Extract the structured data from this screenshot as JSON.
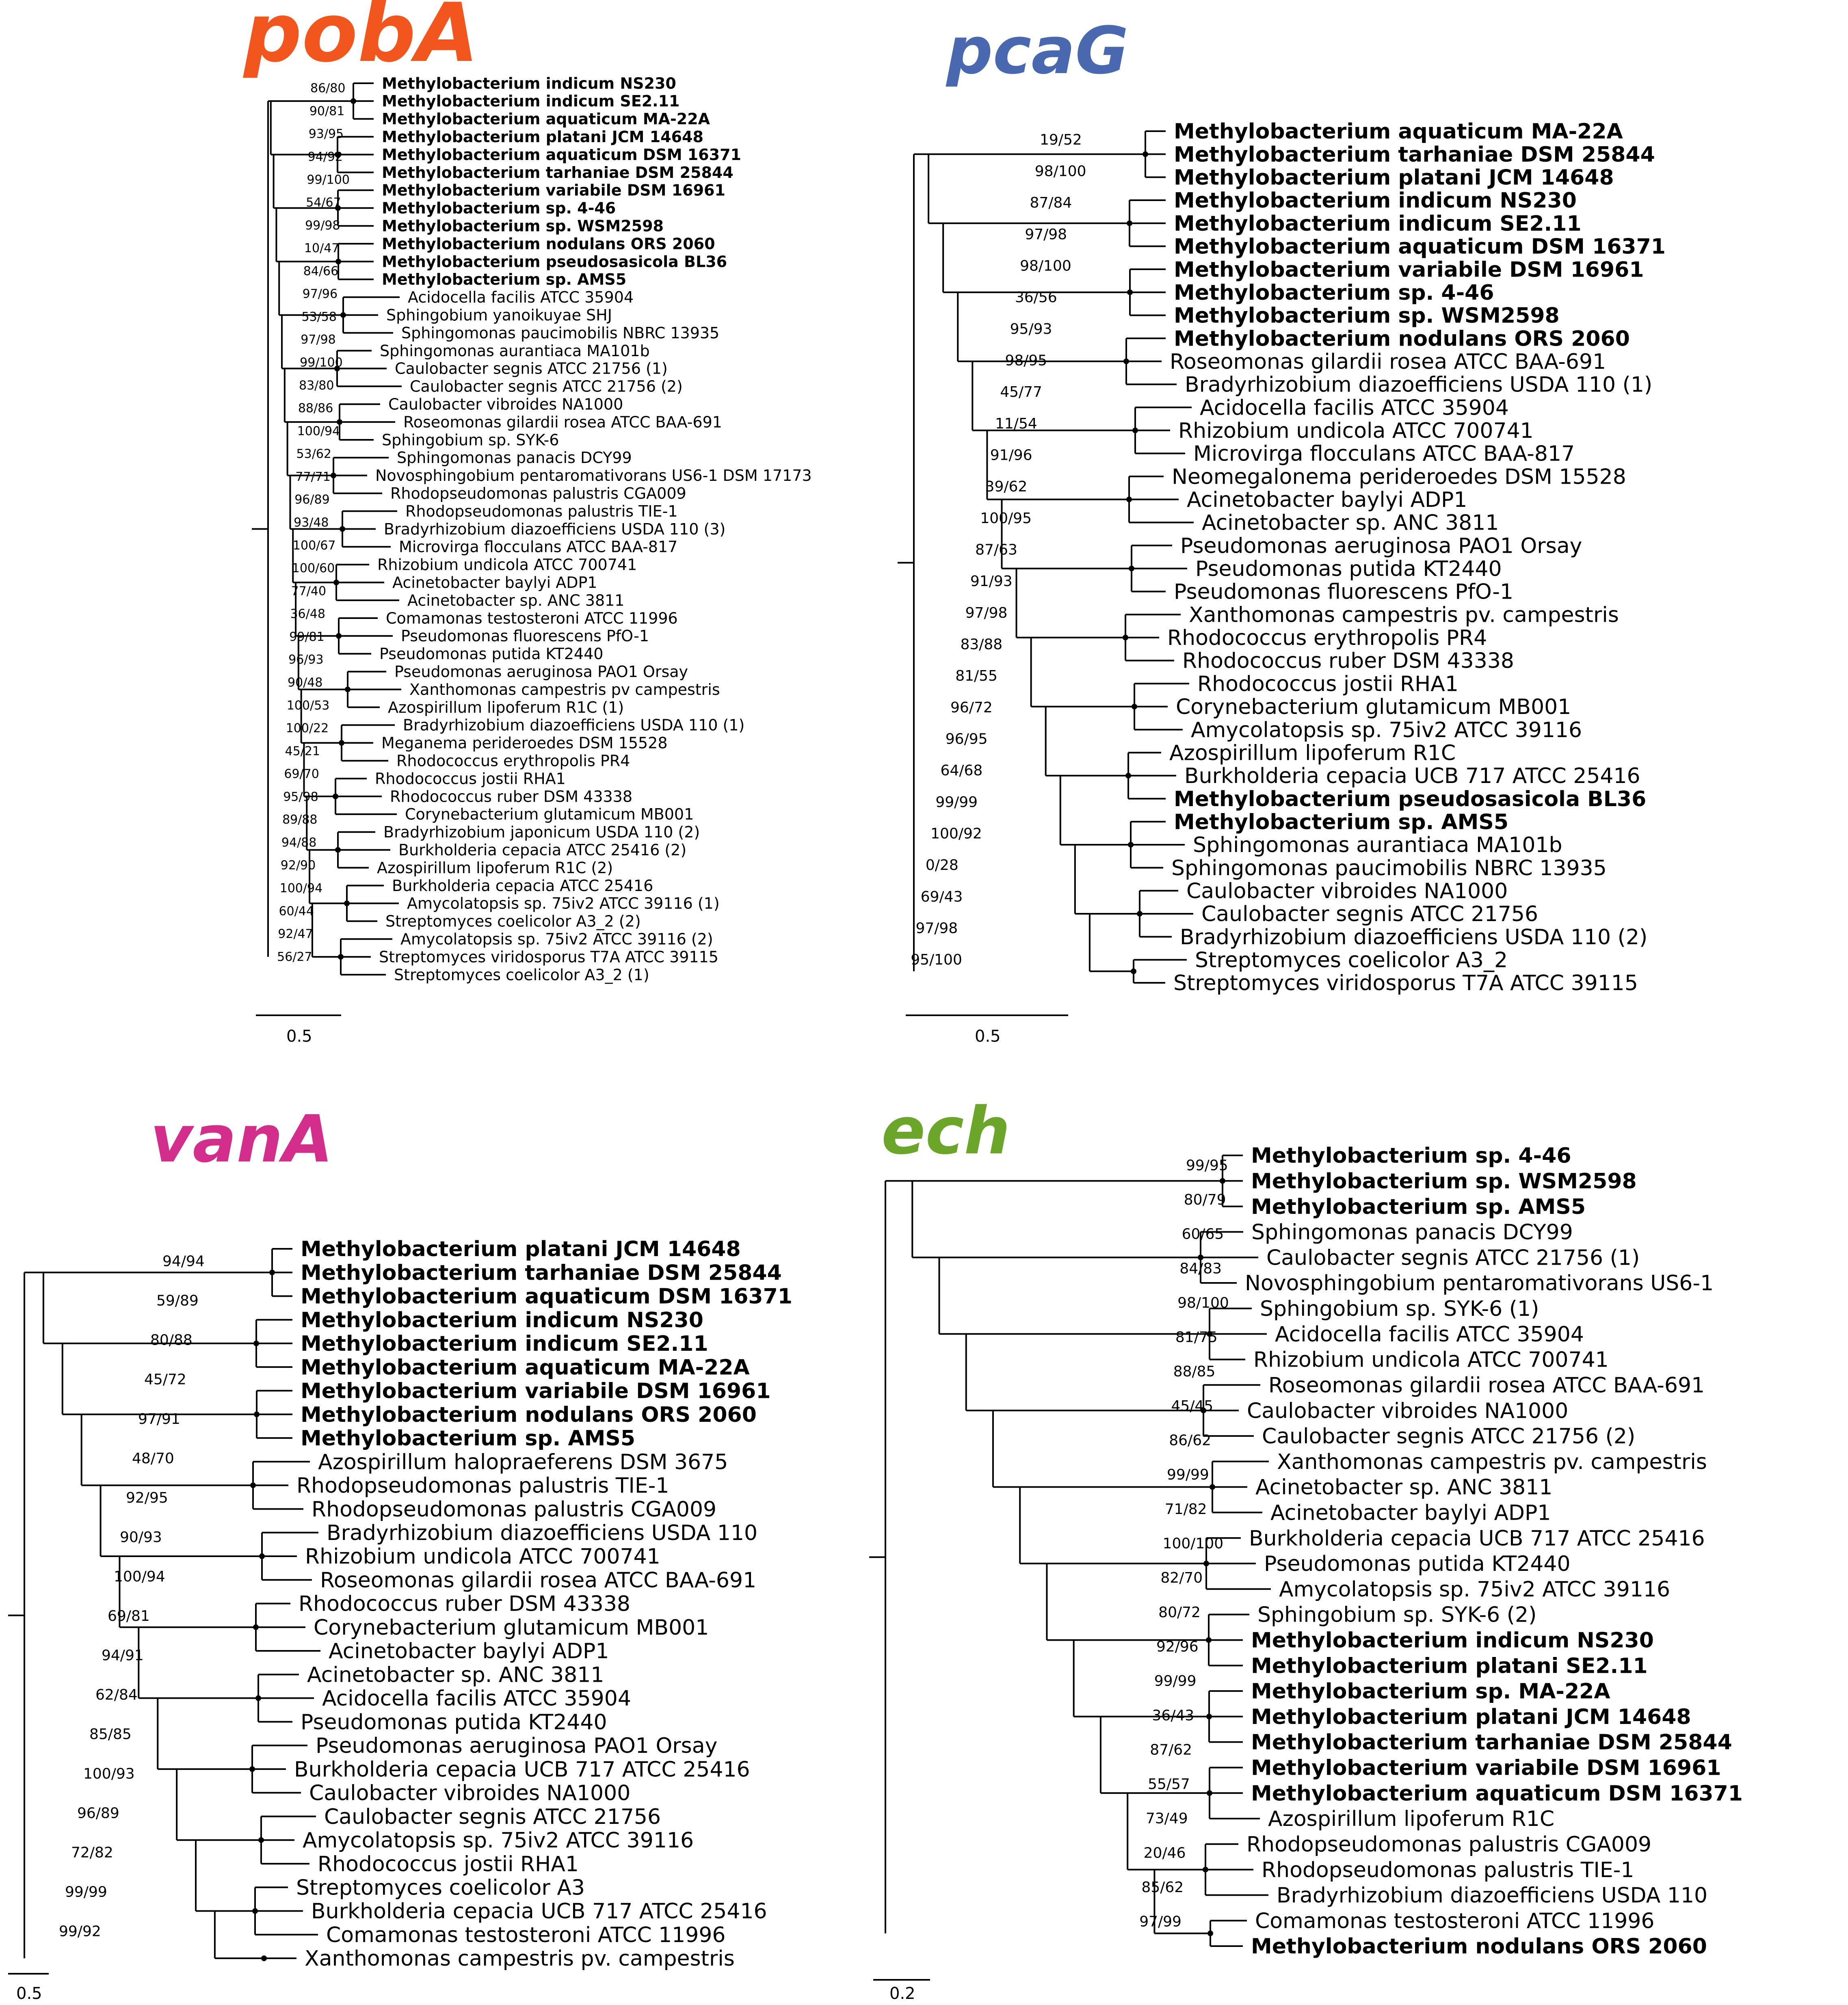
{
  "colors": {
    "pobA": "#f0561e",
    "pcaG": "#4a68b0",
    "vanA": "#d42e8d",
    "ech": "#6ba52a",
    "default": "#000000"
  },
  "panels": [
    {
      "title": "pobA",
      "color": "#f0561e",
      "scale": "0.5",
      "font": 38,
      "leaves": [
        {
          "name": "Methylobacterium indicum NS230",
          "hl": true
        },
        {
          "name": "Methylobacterium indicum SE2.11",
          "hl": true
        },
        {
          "name": "Methylobacterium aquaticum MA-22A",
          "hl": true
        },
        {
          "name": "Methylobacterium platani JCM 14648",
          "hl": true
        },
        {
          "name": "Methylobacterium aquaticum DSM 16371",
          "hl": true
        },
        {
          "name": "Methylobacterium tarhaniae DSM 25844",
          "hl": true
        },
        {
          "name": "Methylobacterium variabile DSM 16961",
          "hl": true
        },
        {
          "name": "Methylobacterium sp. 4-46",
          "hl": true
        },
        {
          "name": "Methylobacterium sp. WSM2598",
          "hl": true
        },
        {
          "name": "Methylobacterium nodulans ORS 2060",
          "hl": true
        },
        {
          "name": "Methylobacterium pseudosasicola BL36",
          "hl": true
        },
        {
          "name": "Methylobacterium sp. AMS5",
          "hl": true
        },
        {
          "name": "Acidocella facilis ATCC 35904"
        },
        {
          "name": "Sphingobium yanoikuyae SHJ"
        },
        {
          "name": "Sphingomonas paucimobilis NBRC 13935"
        },
        {
          "name": "Sphingomonas aurantiaca MA101b"
        },
        {
          "name": "Caulobacter segnis ATCC 21756 (1)"
        },
        {
          "name": "Caulobacter segnis ATCC 21756 (2)"
        },
        {
          "name": "Caulobacter vibroides NA1000"
        },
        {
          "name": "Roseomonas gilardii rosea ATCC BAA-691"
        },
        {
          "name": "Sphingobium sp. SYK-6"
        },
        {
          "name": "Sphingomonas panacis DCY99"
        },
        {
          "name": "Novosphingobium pentaromativorans US6-1 DSM 17173"
        },
        {
          "name": "Rhodopseudomonas palustris CGA009"
        },
        {
          "name": "Rhodopseudomonas palustris TIE-1"
        },
        {
          "name": "Bradyrhizobium diazoefficiens USDA 110 (3)"
        },
        {
          "name": "Microvirga flocculans ATCC BAA-817"
        },
        {
          "name": "Rhizobium undicola ATCC 700741"
        },
        {
          "name": "Acinetobacter baylyi ADP1"
        },
        {
          "name": "Acinetobacter sp. ANC 3811"
        },
        {
          "name": "Comamonas testosteroni ATCC 11996"
        },
        {
          "name": "Pseudomonas fluorescens PfO-1"
        },
        {
          "name": "Pseudomonas putida KT2440"
        },
        {
          "name": "Pseudomonas aeruginosa PAO1 Orsay"
        },
        {
          "name": "Xanthomonas campestris pv campestris"
        },
        {
          "name": "Azospirillum lipoferum R1C (1)"
        },
        {
          "name": "Bradyrhizobium diazoefficiens USDA 110 (1)"
        },
        {
          "name": "Meganema perideroedes DSM 15528"
        },
        {
          "name": "Rhodococcus erythropolis PR4"
        },
        {
          "name": "Rhodococcus jostii RHA1"
        },
        {
          "name": "Rhodococcus ruber DSM 43338"
        },
        {
          "name": "Corynebacterium glutamicum MB001"
        },
        {
          "name": "Bradyrhizobium japonicum USDA 110 (2)"
        },
        {
          "name": "Burkholderia cepacia ATCC 25416 (2)"
        },
        {
          "name": "Azospirillum lipoferum R1C (2)"
        },
        {
          "name": "Burkholderia cepacia ATCC 25416"
        },
        {
          "name": "Amycolatopsis sp. 75iv2 ATCC 39116 (1)"
        },
        {
          "name": "Streptomyces coelicolor A3_2 (2)"
        },
        {
          "name": "Amycolatopsis sp. 75iv2 ATCC 39116 (2)"
        },
        {
          "name": "Streptomyces viridosporus T7A ATCC 39115"
        },
        {
          "name": "Streptomyces coelicolor A3_2 (1)"
        }
      ],
      "support": [
        "86/80",
        "90/81",
        "93/95",
        "94/92",
        "99/100",
        "54/67",
        "99/98",
        "10/47",
        "84/66",
        "97/96",
        "53/58",
        "97/98",
        "99/100",
        "83/80",
        "88/86",
        "100/94",
        "53/62",
        "77/71",
        "96/89",
        "93/48",
        "100/67",
        "100/60",
        "77/40",
        "36/48",
        "99/81",
        "96/93",
        "90/48",
        "100/53",
        "100/22",
        "45/21",
        "69/70",
        "95/98",
        "89/88",
        "94/88",
        "92/90",
        "100/94",
        "60/44",
        "92/47",
        "56/27"
      ]
    },
    {
      "title": "pcaG",
      "color": "#4a68b0",
      "scale": "0.5",
      "font": 52,
      "leaves": [
        {
          "name": "Methylobacterium aquaticum MA-22A",
          "hl": true
        },
        {
          "name": "Methylobacterium tarhaniae DSM 25844",
          "hl": true
        },
        {
          "name": "Methylobacterium platani JCM 14648",
          "hl": true
        },
        {
          "name": "Methylobacterium indicum NS230",
          "hl": true
        },
        {
          "name": "Methylobacterium indicum SE2.11",
          "hl": true
        },
        {
          "name": "Methylobacterium aquaticum DSM 16371",
          "hl": true
        },
        {
          "name": "Methylobacterium variabile DSM 16961",
          "hl": true
        },
        {
          "name": "Methylobacterium sp. 4-46",
          "hl": true
        },
        {
          "name": "Methylobacterium sp. WSM2598",
          "hl": true
        },
        {
          "name": "Methylobacterium nodulans ORS 2060",
          "hl": true
        },
        {
          "name": "Roseomonas gilardii rosea ATCC BAA-691"
        },
        {
          "name": "Bradyrhizobium diazoefficiens USDA 110 (1)"
        },
        {
          "name": "Acidocella facilis ATCC 35904"
        },
        {
          "name": "Rhizobium undicola ATCC 700741"
        },
        {
          "name": "Microvirga flocculans ATCC BAA-817"
        },
        {
          "name": "Neomegalonema perideroedes DSM 15528"
        },
        {
          "name": "Acinetobacter baylyi ADP1"
        },
        {
          "name": "Acinetobacter sp. ANC 3811"
        },
        {
          "name": "Pseudomonas aeruginosa PAO1 Orsay"
        },
        {
          "name": "Pseudomonas putida KT2440"
        },
        {
          "name": "Pseudomonas fluorescens PfO-1"
        },
        {
          "name": "Xanthomonas campestris pv. campestris"
        },
        {
          "name": "Rhodococcus erythropolis PR4"
        },
        {
          "name": "Rhodococcus ruber DSM 43338"
        },
        {
          "name": "Rhodococcus jostii RHA1"
        },
        {
          "name": "Corynebacterium glutamicum MB001"
        },
        {
          "name": "Amycolatopsis sp. 75iv2 ATCC 39116"
        },
        {
          "name": "Azospirillum lipoferum R1C"
        },
        {
          "name": "Burkholderia cepacia UCB 717 ATCC 25416"
        },
        {
          "name": "Methylobacterium pseudosasicola BL36",
          "hl": true
        },
        {
          "name": "Methylobacterium sp. AMS5",
          "hl": true
        },
        {
          "name": "Sphingomonas aurantiaca MA101b"
        },
        {
          "name": "Sphingomonas paucimobilis NBRC 13935"
        },
        {
          "name": "Caulobacter vibroides NA1000"
        },
        {
          "name": "Caulobacter segnis ATCC 21756"
        },
        {
          "name": "Bradyrhizobium diazoefficiens USDA 110 (2)"
        },
        {
          "name": "Streptomyces coelicolor A3_2"
        },
        {
          "name": "Streptomyces viridosporus T7A ATCC 39115"
        }
      ],
      "support": [
        "19/52",
        "98/100",
        "87/84",
        "97/98",
        "98/100",
        "36/56",
        "95/93",
        "98/95",
        "45/77",
        "11/54",
        "91/96",
        "39/62",
        "100/95",
        "87/63",
        "91/93",
        "97/98",
        "83/88",
        "81/55",
        "96/72",
        "96/95",
        "64/68",
        "99/99",
        "100/92",
        "0/28",
        "69/43",
        "97/98",
        "95/100"
      ]
    },
    {
      "title": "vanA",
      "color": "#d42e8d",
      "scale": "0.5",
      "font": 52,
      "leaves": [
        {
          "name": "Methylobacterium platani JCM 14648",
          "hl": true
        },
        {
          "name": "Methylobacterium tarhaniae DSM 25844",
          "hl": true
        },
        {
          "name": "Methylobacterium aquaticum DSM 16371",
          "hl": true
        },
        {
          "name": "Methylobacterium indicum NS230",
          "hl": true
        },
        {
          "name": "Methylobacterium indicum SE2.11",
          "hl": true
        },
        {
          "name": "Methylobacterium aquaticum MA-22A",
          "hl": true
        },
        {
          "name": "Methylobacterium variabile DSM 16961",
          "hl": true
        },
        {
          "name": "Methylobacterium nodulans ORS 2060",
          "hl": true
        },
        {
          "name": "Methylobacterium sp. AMS5",
          "hl": true
        },
        {
          "name": "Azospirillum halopraeferens DSM 3675"
        },
        {
          "name": "Rhodopseudomonas palustris TIE-1"
        },
        {
          "name": "Rhodopseudomonas palustris CGA009"
        },
        {
          "name": "Bradyrhizobium diazoefficiens USDA 110"
        },
        {
          "name": "Rhizobium undicola ATCC 700741"
        },
        {
          "name": "Roseomonas gilardii rosea ATCC BAA-691"
        },
        {
          "name": "Rhodococcus ruber DSM 43338"
        },
        {
          "name": "Corynebacterium glutamicum MB001"
        },
        {
          "name": "Acinetobacter baylyi ADP1"
        },
        {
          "name": "Acinetobacter sp. ANC 3811"
        },
        {
          "name": "Acidocella facilis ATCC 35904"
        },
        {
          "name": "Pseudomonas putida KT2440"
        },
        {
          "name": "Pseudomonas aeruginosa PAO1 Orsay"
        },
        {
          "name": "Burkholderia cepacia UCB 717 ATCC 25416"
        },
        {
          "name": "Caulobacter vibroides NA1000"
        },
        {
          "name": "Caulobacter segnis ATCC 21756"
        },
        {
          "name": "Amycolatopsis sp. 75iv2 ATCC 39116"
        },
        {
          "name": "Rhodococcus jostii RHA1"
        },
        {
          "name": "Streptomyces coelicolor A3"
        },
        {
          "name": "Burkholderia cepacia UCB 717 ATCC 25416"
        },
        {
          "name": "Comamonas testosteroni ATCC 11996"
        },
        {
          "name": "Xanthomonas campestris pv. campestris"
        }
      ],
      "support": [
        "94/94",
        "59/89",
        "80/88",
        "45/72",
        "97/91",
        "48/70",
        "92/95",
        "90/93",
        "100/94",
        "69/81",
        "94/91",
        "62/84",
        "85/85",
        "100/93",
        "96/89",
        "72/82",
        "99/99",
        "99/92"
      ]
    },
    {
      "title": "ech",
      "color": "#6ba52a",
      "scale": "0.2",
      "font": 52,
      "leaves": [
        {
          "name": "Methylobacterium sp. 4-46",
          "hl": true
        },
        {
          "name": "Methylobacterium sp. WSM2598",
          "hl": true
        },
        {
          "name": "Methylobacterium sp. AMS5",
          "hl": true
        },
        {
          "name": "Sphingomonas panacis DCY99"
        },
        {
          "name": "Caulobacter segnis ATCC 21756 (1)"
        },
        {
          "name": "Novosphingobium pentaromativorans US6-1"
        },
        {
          "name": "Sphingobium sp. SYK-6 (1)"
        },
        {
          "name": "Acidocella facilis ATCC 35904"
        },
        {
          "name": "Rhizobium undicola ATCC 700741"
        },
        {
          "name": "Roseomonas gilardii rosea ATCC BAA-691"
        },
        {
          "name": "Caulobacter vibroides NA1000"
        },
        {
          "name": "Caulobacter segnis ATCC 21756 (2)"
        },
        {
          "name": "Xanthomonas campestris pv. campestris"
        },
        {
          "name": "Acinetobacter sp. ANC 3811"
        },
        {
          "name": "Acinetobacter baylyi ADP1"
        },
        {
          "name": "Burkholderia cepacia UCB 717 ATCC 25416"
        },
        {
          "name": "Pseudomonas putida KT2440"
        },
        {
          "name": "Amycolatopsis sp. 75iv2 ATCC 39116"
        },
        {
          "name": "Sphingobium sp. SYK-6 (2)"
        },
        {
          "name": "Methylobacterium indicum NS230",
          "hl": true
        },
        {
          "name": "Methylobacterium platani SE2.11",
          "hl": true
        },
        {
          "name": "Methylobacterium sp. MA-22A",
          "hl": true
        },
        {
          "name": "Methylobacterium platani JCM 14648",
          "hl": true
        },
        {
          "name": "Methylobacterium tarhaniae DSM 25844",
          "hl": true
        },
        {
          "name": "Methylobacterium variabile DSM 16961",
          "hl": true
        },
        {
          "name": "Methylobacterium aquaticum DSM 16371",
          "hl": true
        },
        {
          "name": "Azospirillum lipoferum R1C"
        },
        {
          "name": "Rhodopseudomonas palustris CGA009"
        },
        {
          "name": "Rhodopseudomonas palustris TIE-1"
        },
        {
          "name": "Bradyrhizobium diazoefficiens USDA 110"
        },
        {
          "name": "Comamonas testosteroni ATCC 11996"
        },
        {
          "name": "Methylobacterium nodulans ORS 2060",
          "hl": true
        }
      ],
      "support": [
        "99/95",
        "80/79",
        "60/65",
        "84/83",
        "98/100",
        "81/75",
        "88/85",
        "45/45",
        "86/62",
        "99/99",
        "71/82",
        "100/100",
        "82/70",
        "80/72",
        "92/96",
        "99/99",
        "36/43",
        "87/62",
        "55/57",
        "73/49",
        "20/46",
        "85/62",
        "97/99"
      ]
    }
  ]
}
